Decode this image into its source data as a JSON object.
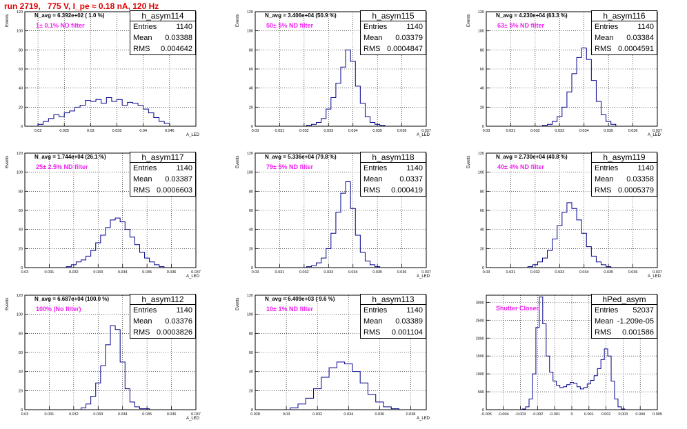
{
  "title": "run 2719,   775 V, I_pe ≈ 0.18 nA, 120 Hz",
  "colors": {
    "title": "#e00000",
    "filter_label": "#f020f0",
    "histogram": "#00008b"
  },
  "panels": [
    {
      "name": "h_asym114",
      "entries": "1140",
      "mean": "0.03388",
      "rms": "0.004642",
      "navg": "N_avg = 6.392e+02 ( 1.0 %)",
      "filter": "1± 0.1% ND filter",
      "ylabel": "Events",
      "xlabel": "A_LED"
    },
    {
      "name": "h_asym115",
      "entries": "1140",
      "mean": "0.03379",
      "rms": "0.0004847",
      "navg": "N_avg = 3.406e+04 (50.9 %)",
      "filter": "50± 5% ND filter",
      "ylabel": "Events",
      "xlabel": "A_LED"
    },
    {
      "name": "h_asym116",
      "entries": "1140",
      "mean": "0.03384",
      "rms": "0.0004591",
      "navg": "N_avg = 4.230e+04 (63.3 %)",
      "filter": "63± 5% ND filter",
      "ylabel": "Events",
      "xlabel": "A_LED"
    },
    {
      "name": "h_asym117",
      "entries": "1140",
      "mean": "0.03387",
      "rms": "0.0006603",
      "navg": "N_avg = 1.744e+04 (26.1 %)",
      "filter": "25± 2.5% ND filter",
      "ylabel": "Events",
      "xlabel": "A_LED"
    },
    {
      "name": "h_asym118",
      "entries": "1140",
      "mean": "0.0337",
      "rms": "0.000419",
      "navg": "N_avg = 5.336e+04 (79.8 %)",
      "filter": "79± 5% ND filter",
      "ylabel": "Events",
      "xlabel": "A_LED"
    },
    {
      "name": "h_asym119",
      "entries": "1140",
      "mean": "0.03358",
      "rms": "0.0005379",
      "navg": "N_avg = 2.730e+04 (40.8 %)",
      "filter": "40± 4% ND filter",
      "ylabel": "Events",
      "xlabel": "A_LED"
    },
    {
      "name": "h_asym112",
      "entries": "1140",
      "mean": "0.03376",
      "rms": "0.0003826",
      "navg": "N_avg = 6.687e+04 (100.0 %)",
      "filter": "100% (No filter)",
      "ylabel": "Events",
      "xlabel": "A_LED"
    },
    {
      "name": "h_asym113",
      "entries": "1140",
      "mean": "0.03389",
      "rms": "0.001104",
      "navg": "N_avg = 6.409e+03 ( 9.6 %)",
      "filter": "10± 1% ND filter",
      "ylabel": "Events",
      "xlabel": "A_LED"
    },
    {
      "name": "hPed_asym",
      "entries": "52037",
      "mean": "-1.209e-05",
      "rms": "0.001586",
      "navg": "",
      "filter": "Shutter Closed",
      "ylabel": "",
      "xlabel": ""
    }
  ],
  "stat_labels": {
    "entries": "Entries",
    "mean": "Mean",
    "rms": "RMS"
  },
  "chart_data": [
    {
      "type": "histogram",
      "title": "h_asym114",
      "xlabel": "A_LED",
      "ylabel": "Events",
      "xlim": [
        0.0175,
        0.05
      ],
      "ylim": [
        0,
        120
      ],
      "xticks": [
        "0.02",
        "0.025",
        "0.03",
        "0.035",
        "0.04",
        "0.045"
      ],
      "xtick_values": [
        0.02,
        0.025,
        0.03,
        0.035,
        0.04,
        0.045
      ],
      "yticks": [
        0,
        20,
        40,
        60,
        80,
        100,
        120
      ],
      "x": [
        0.0205,
        0.0215,
        0.0225,
        0.0235,
        0.0245,
        0.0255,
        0.0265,
        0.0275,
        0.0285,
        0.0295,
        0.0305,
        0.0315,
        0.0325,
        0.0335,
        0.0345,
        0.0355,
        0.0365,
        0.0375,
        0.0385,
        0.0395,
        0.0405,
        0.0415,
        0.0425,
        0.0435,
        0.0445
      ],
      "y": [
        2,
        5,
        8,
        12,
        10,
        14,
        16,
        20,
        22,
        27,
        26,
        28,
        24,
        30,
        26,
        28,
        22,
        25,
        24,
        22,
        18,
        14,
        9,
        5,
        3
      ]
    },
    {
      "type": "histogram",
      "title": "h_asym115",
      "xlabel": "A_LED",
      "ylabel": "Events",
      "xlim": [
        0.03,
        0.037
      ],
      "ylim": [
        0,
        120
      ],
      "xticks": [
        "0.03",
        "0.031",
        "0.032",
        "0.033",
        "0.034",
        "0.035",
        "0.036",
        "0.037"
      ],
      "xtick_values": [
        0.03,
        0.031,
        0.032,
        0.033,
        0.034,
        0.035,
        0.036,
        0.037
      ],
      "yticks": [
        0,
        20,
        40,
        60,
        80,
        100,
        120
      ],
      "x": [
        0.0322,
        0.0324,
        0.0326,
        0.0328,
        0.033,
        0.0332,
        0.0334,
        0.0336,
        0.0338,
        0.034,
        0.0342,
        0.0344,
        0.0346,
        0.0348,
        0.035,
        0.0352
      ],
      "y": [
        1,
        2,
        4,
        8,
        18,
        30,
        45,
        62,
        80,
        68,
        42,
        24,
        10,
        4,
        2,
        1
      ]
    },
    {
      "type": "histogram",
      "title": "h_asym116",
      "xlabel": "A_LED",
      "ylabel": "Events",
      "xlim": [
        0.03,
        0.037
      ],
      "ylim": [
        0,
        120
      ],
      "xticks": [
        "0.03",
        "0.031",
        "0.032",
        "0.033",
        "0.034",
        "0.035",
        "0.036",
        "0.037"
      ],
      "xtick_values": [
        0.03,
        0.031,
        0.032,
        0.033,
        0.034,
        0.035,
        0.036,
        0.037
      ],
      "yticks": [
        0,
        20,
        40,
        60,
        80,
        100,
        120
      ],
      "x": [
        0.0324,
        0.0326,
        0.0328,
        0.033,
        0.0332,
        0.0334,
        0.0336,
        0.0338,
        0.034,
        0.0342,
        0.0344,
        0.0346,
        0.0348,
        0.035,
        0.0352
      ],
      "y": [
        1,
        2,
        5,
        10,
        20,
        36,
        55,
        72,
        82,
        70,
        48,
        26,
        12,
        5,
        2
      ]
    },
    {
      "type": "histogram",
      "title": "h_asym117",
      "xlabel": "A_LED",
      "ylabel": "Events",
      "xlim": [
        0.03,
        0.037
      ],
      "ylim": [
        0,
        120
      ],
      "xticks": [
        "0.03",
        "0.031",
        "0.032",
        "0.033",
        "0.034",
        "0.035",
        "0.036",
        "0.037"
      ],
      "xtick_values": [
        0.03,
        0.031,
        0.032,
        0.033,
        0.034,
        0.035,
        0.036,
        0.037
      ],
      "yticks": [
        0,
        20,
        40,
        60,
        80,
        100,
        120
      ],
      "x": [
        0.0318,
        0.032,
        0.0322,
        0.0324,
        0.0326,
        0.0328,
        0.033,
        0.0332,
        0.0334,
        0.0336,
        0.0338,
        0.034,
        0.0342,
        0.0344,
        0.0346,
        0.0348,
        0.035,
        0.0352,
        0.0354,
        0.0356
      ],
      "y": [
        1,
        3,
        6,
        8,
        12,
        18,
        26,
        34,
        42,
        50,
        52,
        48,
        40,
        32,
        24,
        16,
        10,
        6,
        3,
        1
      ]
    },
    {
      "type": "histogram",
      "title": "h_asym118",
      "xlabel": "A_LED",
      "ylabel": "Events",
      "xlim": [
        0.03,
        0.037
      ],
      "ylim": [
        0,
        120
      ],
      "xticks": [
        "0.03",
        "0.031",
        "0.032",
        "0.033",
        "0.034",
        "0.035",
        "0.036",
        "0.037"
      ],
      "xtick_values": [
        0.03,
        0.031,
        0.032,
        0.033,
        0.034,
        0.035,
        0.036,
        0.037
      ],
      "yticks": [
        0,
        20,
        40,
        60,
        80,
        100,
        120
      ],
      "x": [
        0.0322,
        0.0324,
        0.0326,
        0.0328,
        0.033,
        0.0332,
        0.0334,
        0.0336,
        0.0338,
        0.034,
        0.0342,
        0.0344,
        0.0346,
        0.0348,
        0.035
      ],
      "y": [
        1,
        2,
        5,
        10,
        20,
        36,
        58,
        78,
        90,
        62,
        34,
        16,
        7,
        3,
        1
      ]
    },
    {
      "type": "histogram",
      "title": "h_asym119",
      "xlabel": "A_LED",
      "ylabel": "Events",
      "xlim": [
        0.03,
        0.037
      ],
      "ylim": [
        0,
        120
      ],
      "xticks": [
        "0.03",
        "0.031",
        "0.032",
        "0.033",
        "0.034",
        "0.035",
        "0.036",
        "0.037"
      ],
      "xtick_values": [
        0.03,
        0.031,
        0.032,
        0.033,
        0.034,
        0.035,
        0.036,
        0.037
      ],
      "yticks": [
        0,
        20,
        40,
        60,
        80,
        100,
        120
      ],
      "x": [
        0.0318,
        0.032,
        0.0322,
        0.0324,
        0.0326,
        0.0328,
        0.033,
        0.0332,
        0.0334,
        0.0336,
        0.0338,
        0.034,
        0.0342,
        0.0344,
        0.0346,
        0.0348,
        0.035
      ],
      "y": [
        1,
        3,
        6,
        10,
        18,
        30,
        44,
        58,
        68,
        62,
        50,
        36,
        22,
        12,
        6,
        3,
        1
      ]
    },
    {
      "type": "histogram",
      "title": "h_asym112",
      "xlabel": "A_LED",
      "ylabel": "Events",
      "xlim": [
        0.03,
        0.037
      ],
      "ylim": [
        0,
        120
      ],
      "xticks": [
        "0.03",
        "0.031",
        "0.032",
        "0.033",
        "0.034",
        "0.035",
        "0.036",
        "0.037"
      ],
      "xtick_values": [
        0.03,
        0.031,
        0.032,
        0.033,
        0.034,
        0.035,
        0.036,
        0.037
      ],
      "yticks": [
        0,
        20,
        40,
        60,
        80,
        100,
        120
      ],
      "x": [
        0.0324,
        0.0326,
        0.0328,
        0.033,
        0.0332,
        0.0334,
        0.0336,
        0.0338,
        0.034,
        0.0342,
        0.0344,
        0.0346,
        0.0348,
        0.035
      ],
      "y": [
        2,
        6,
        14,
        28,
        46,
        68,
        88,
        84,
        50,
        22,
        8,
        3,
        1,
        1
      ]
    },
    {
      "type": "histogram",
      "title": "h_asym113",
      "xlabel": "A_LED",
      "ylabel": "Events",
      "xlim": [
        0.028,
        0.039
      ],
      "ylim": [
        0,
        120
      ],
      "xticks": [
        "0.028",
        "0.03",
        "0.032",
        "0.034",
        "0.036",
        "0.038"
      ],
      "xtick_values": [
        0.028,
        0.03,
        0.032,
        0.034,
        0.036,
        0.038
      ],
      "yticks": [
        0,
        20,
        40,
        60,
        80,
        100,
        120
      ],
      "x": [
        0.0305,
        0.031,
        0.0315,
        0.032,
        0.0325,
        0.033,
        0.0335,
        0.034,
        0.0345,
        0.035,
        0.0355,
        0.036,
        0.0365,
        0.037
      ],
      "y": [
        2,
        6,
        12,
        22,
        34,
        44,
        50,
        48,
        40,
        28,
        16,
        8,
        3,
        1
      ]
    },
    {
      "type": "histogram",
      "title": "hPed_asym",
      "xlabel": "",
      "ylabel": "",
      "xlim": [
        -0.005,
        0.005
      ],
      "ylim": [
        0,
        3200
      ],
      "xticks": [
        "-0.005",
        "-0.004",
        "-0.003",
        "-0.002",
        "-0.001",
        "0",
        "0.001",
        "0.002",
        "0.003",
        "0.004",
        "0.005"
      ],
      "xtick_values": [
        -0.005,
        -0.004,
        -0.003,
        -0.002,
        -0.001,
        0,
        0.001,
        0.002,
        0.003,
        0.004,
        0.005
      ],
      "yticks": [
        0,
        500,
        1000,
        1500,
        2000,
        2500,
        3000
      ],
      "x": [
        -0.0028,
        -0.0026,
        -0.0024,
        -0.0022,
        -0.002,
        -0.0018,
        -0.0016,
        -0.0014,
        -0.0012,
        -0.001,
        -0.0008,
        -0.0006,
        -0.0004,
        -0.0002,
        0,
        0.0002,
        0.0004,
        0.0006,
        0.0008,
        0.001,
        0.0012,
        0.0014,
        0.0016,
        0.0018,
        0.002,
        0.0022,
        0.0024,
        0.0026,
        0.0028,
        0.003
      ],
      "y": [
        20,
        80,
        300,
        1000,
        2300,
        3150,
        2400,
        1500,
        1050,
        800,
        680,
        620,
        640,
        700,
        760,
        740,
        640,
        580,
        620,
        720,
        820,
        950,
        1150,
        1400,
        1700,
        1500,
        800,
        300,
        80,
        20
      ]
    }
  ]
}
